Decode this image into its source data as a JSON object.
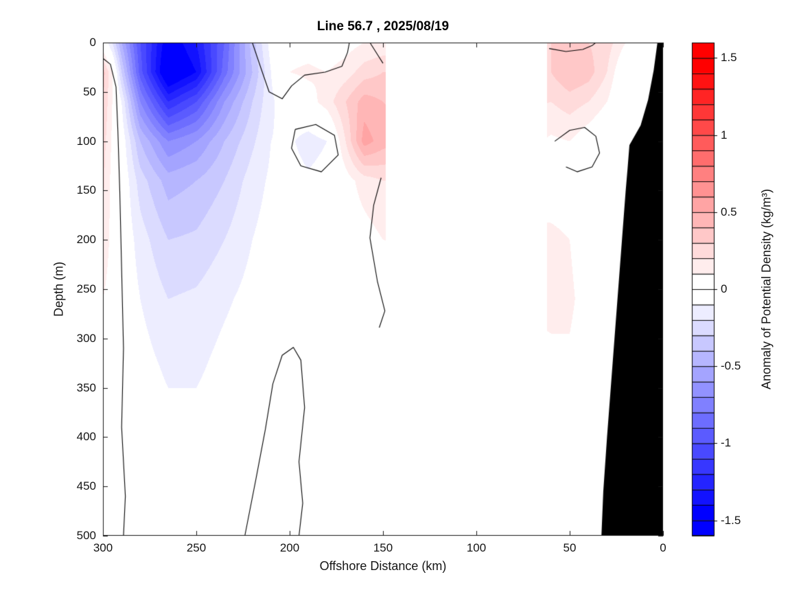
{
  "title": "Line 56.7 , 2025/08/19",
  "chart_data": {
    "type": "heatmap",
    "title": "Line 56.7 , 2025/08/19",
    "xlabel": "Offshore Distance (km)",
    "ylabel": "Depth (m)",
    "colorbar_label": "Anomaly of Potential Density (kg/m³)",
    "x_range": [
      300,
      0
    ],
    "y_range": [
      0,
      500
    ],
    "x_ticks": [
      300,
      250,
      200,
      150,
      100,
      50,
      0
    ],
    "y_ticks": [
      0,
      50,
      100,
      150,
      200,
      250,
      300,
      350,
      400,
      450,
      500
    ],
    "colorbar_ticks": [
      1.5,
      1,
      0.5,
      0,
      -0.5,
      -1,
      -1.5
    ],
    "colorbar_tick_labels": [
      "1.5",
      "1",
      "0.5",
      "0",
      "-0.5",
      "-1",
      "-1.5"
    ],
    "color_range": [
      -1.6,
      1.6
    ],
    "color_step": 0.1,
    "colors": {
      "positive_extreme": "#FF0000",
      "negative_extreme": "#0000FF",
      "zero": "#FFFFFF",
      "mask": "#000000",
      "axis": "#141414",
      "background": "#FFFFFF"
    },
    "layout_hints": {
      "x_axis_reversed": true,
      "colorbar_position": "right",
      "grid": false
    },
    "data_bands": [
      [
        300,
        148.5
      ],
      [
        62,
        8
      ]
    ],
    "grid": {
      "x": [
        300,
        295,
        290,
        280,
        265,
        250,
        235,
        220,
        210,
        200,
        190,
        180,
        170,
        160,
        150,
        60,
        50,
        40,
        30,
        20,
        10,
        0
      ],
      "depths": [
        0,
        30,
        60,
        100,
        140,
        200,
        260,
        330,
        400,
        500
      ],
      "values": [
        [
          0,
          -0.2,
          -0.5,
          -1,
          -1.5,
          -1.3,
          -0.9,
          -0.35,
          -0.05,
          0.05,
          0.05,
          0.02,
          0.05,
          0.1,
          0.12,
          0.3,
          0.35,
          0.3,
          0.25,
          0.1,
          0.05,
          0
        ],
        [
          0.35,
          0.1,
          -0.3,
          -0.95,
          -1.6,
          -1.4,
          -0.85,
          -0.4,
          -0.1,
          0.1,
          0.12,
          0.1,
          0.15,
          0.25,
          0.3,
          0.3,
          0.4,
          0.35,
          0.2,
          -0.05,
          -0.05,
          0
        ],
        [
          0.3,
          0.1,
          -0.1,
          -0.7,
          -1.2,
          -1,
          -0.6,
          -0.3,
          -0.12,
          -0.02,
          0.05,
          0.15,
          0.3,
          0.45,
          0.4,
          0.2,
          0.25,
          0.2,
          0.1,
          -0.08,
          -0.05,
          0
        ],
        [
          0.25,
          0.08,
          -0.02,
          -0.4,
          -0.7,
          -0.6,
          -0.4,
          -0.22,
          -0.1,
          -0.08,
          -0.15,
          -0.1,
          0.2,
          0.55,
          0.45,
          0.08,
          0.1,
          0.02,
          -0.05,
          -0.06,
          -0.03,
          0
        ],
        [
          0.22,
          0.06,
          0,
          -0.25,
          -0.45,
          -0.4,
          -0.3,
          -0.15,
          -0.08,
          -0.05,
          -0.08,
          -0.05,
          0.05,
          0.15,
          0.2,
          0.05,
          0.05,
          -0.02,
          -0.03,
          -0.02,
          0,
          0
        ],
        [
          0.2,
          0.05,
          0,
          -0.15,
          -0.3,
          -0.28,
          -0.2,
          -0.1,
          -0.05,
          -0.02,
          -0.02,
          0,
          0.02,
          0.05,
          0.1,
          0.12,
          0.1,
          0.03,
          0,
          0,
          0,
          0
        ],
        [
          0.1,
          0.03,
          0,
          -0.1,
          -0.2,
          -0.18,
          -0.12,
          -0.06,
          -0.02,
          0,
          0,
          0.01,
          0.01,
          0.02,
          0.05,
          0.12,
          0.12,
          0.05,
          0.02,
          0,
          0,
          0
        ],
        [
          0.04,
          0.02,
          0,
          -0.05,
          -0.12,
          -0.12,
          -0.06,
          -0.02,
          0,
          0.01,
          0,
          0.01,
          0,
          0,
          0.02,
          0.08,
          0.08,
          0.03,
          0.01,
          0,
          0,
          0
        ],
        [
          0.03,
          0.02,
          0.01,
          -0.02,
          -0.05,
          -0.05,
          -0.02,
          0,
          0.01,
          0.01,
          -0.01,
          0,
          0,
          0,
          0,
          0,
          0,
          0,
          0,
          0,
          0,
          0
        ],
        [
          0.03,
          0.02,
          0.01,
          -0.01,
          -0.01,
          -0.01,
          0,
          0,
          0.01,
          0.01,
          -0.01,
          0,
          0,
          0,
          0,
          0,
          0,
          0,
          0,
          0,
          0,
          0
        ]
      ]
    },
    "bathymetry_polygon": [
      [
        0,
        0
      ],
      [
        3,
        0
      ],
      [
        5,
        28
      ],
      [
        8,
        58
      ],
      [
        12,
        84
      ],
      [
        18,
        104
      ],
      [
        19,
        128
      ],
      [
        20,
        150
      ],
      [
        22,
        200
      ],
      [
        24,
        250
      ],
      [
        26,
        300
      ],
      [
        28,
        350
      ],
      [
        30,
        400
      ],
      [
        32,
        455
      ],
      [
        33,
        500
      ],
      [
        0,
        500
      ]
    ],
    "zero_contours": [
      [
        [
          300,
          16
        ],
        [
          296,
          22
        ],
        [
          293,
          45
        ],
        [
          292,
          90
        ],
        [
          291,
          150
        ],
        [
          290,
          230
        ],
        [
          289,
          310
        ],
        [
          290,
          390
        ],
        [
          288,
          460
        ],
        [
          289,
          500
        ]
      ],
      [
        [
          220,
          0
        ],
        [
          215,
          28
        ],
        [
          211,
          50
        ],
        [
          204,
          57
        ],
        [
          199,
          44
        ],
        [
          192,
          33
        ],
        [
          181,
          30
        ],
        [
          172,
          24
        ],
        [
          169,
          10
        ],
        [
          168,
          0
        ]
      ],
      [
        [
          157,
          0
        ],
        [
          153,
          12
        ],
        [
          150,
          21
        ]
      ],
      [
        [
          197,
          88
        ],
        [
          186,
          83
        ],
        [
          176,
          94
        ],
        [
          174,
          114
        ],
        [
          183,
          131
        ],
        [
          194,
          125
        ],
        [
          199,
          107
        ],
        [
          197,
          88
        ]
      ],
      [
        [
          224,
          500
        ],
        [
          218,
          442
        ],
        [
          213,
          392
        ],
        [
          209,
          346
        ],
        [
          204,
          317
        ],
        [
          198,
          309
        ],
        [
          194,
          322
        ],
        [
          192,
          370
        ],
        [
          195,
          425
        ],
        [
          193,
          467
        ],
        [
          195,
          500
        ]
      ],
      [
        [
          151,
          137
        ],
        [
          155,
          165
        ],
        [
          157,
          198
        ],
        [
          153,
          242
        ],
        [
          149,
          272
        ],
        [
          152,
          289
        ]
      ],
      [
        [
          58,
          100
        ],
        [
          50,
          89
        ],
        [
          42,
          86
        ],
        [
          36,
          95
        ],
        [
          34,
          112
        ],
        [
          38,
          126
        ],
        [
          46,
          131
        ],
        [
          52,
          126
        ]
      ],
      [
        [
          61,
          6
        ],
        [
          52,
          9
        ],
        [
          43,
          7
        ],
        [
          38,
          3
        ],
        [
          36,
          0
        ]
      ]
    ]
  }
}
